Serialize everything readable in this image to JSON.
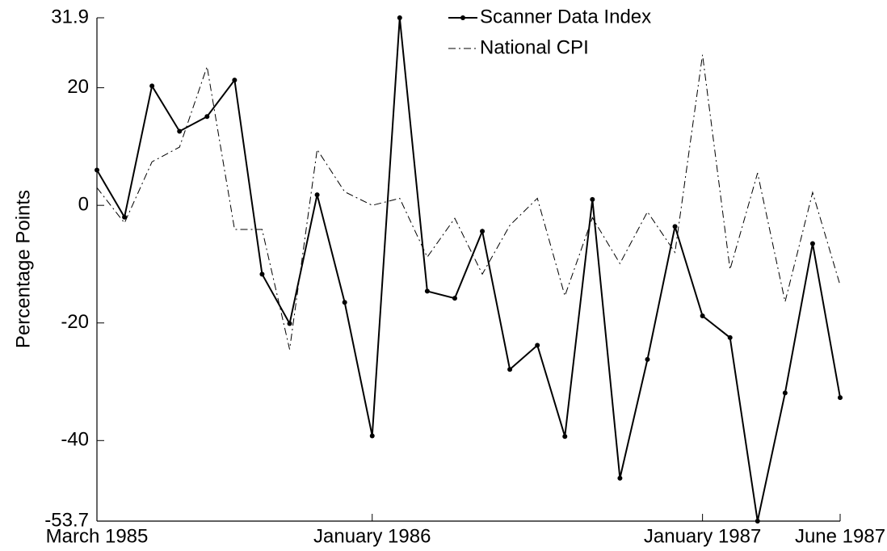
{
  "chart_data": {
    "type": "line",
    "ylabel": "Percentage Points",
    "categories": [
      "March 1985",
      null,
      null,
      null,
      null,
      null,
      null,
      null,
      null,
      null,
      "January 1986",
      null,
      null,
      null,
      null,
      null,
      null,
      null,
      null,
      null,
      null,
      null,
      "January 1987",
      null,
      null,
      null,
      null,
      "June 1987"
    ],
    "series": [
      {
        "name": "Scanner Data Index",
        "color": "#000000",
        "dash": "solid",
        "marker": true,
        "values": [
          6.0,
          -2.0,
          20.3,
          12.6,
          15.1,
          21.3,
          -11.7,
          -20.1,
          1.8,
          -16.5,
          -39.2,
          31.9,
          -14.6,
          -15.8,
          -4.4,
          -27.9,
          -23.8,
          -39.3,
          1.0,
          -46.4,
          -26.2,
          -3.6,
          -18.8,
          -22.5,
          -53.7,
          -31.9,
          -6.5,
          -32.7
        ]
      },
      {
        "name": "National CPI",
        "color": "#000000",
        "dash": "dashdot",
        "marker": false,
        "values": [
          3.0,
          -3.0,
          7.4,
          9.9,
          23.6,
          -4.1,
          -4.1,
          -24.5,
          9.5,
          2.3,
          0,
          1.2,
          -8.8,
          -2.2,
          -11.7,
          -3.4,
          1.2,
          -15.4,
          -2.1,
          -9.9,
          -1.1,
          -8.0,
          25.6,
          -10.9,
          5.5,
          -16.4,
          2.2,
          -13.6
        ]
      }
    ],
    "ylim": [
      -53.7,
      31.9
    ],
    "yticks": [
      -53.7,
      -40,
      -20,
      0,
      20,
      31.9
    ],
    "grid": false,
    "legend": "top"
  }
}
